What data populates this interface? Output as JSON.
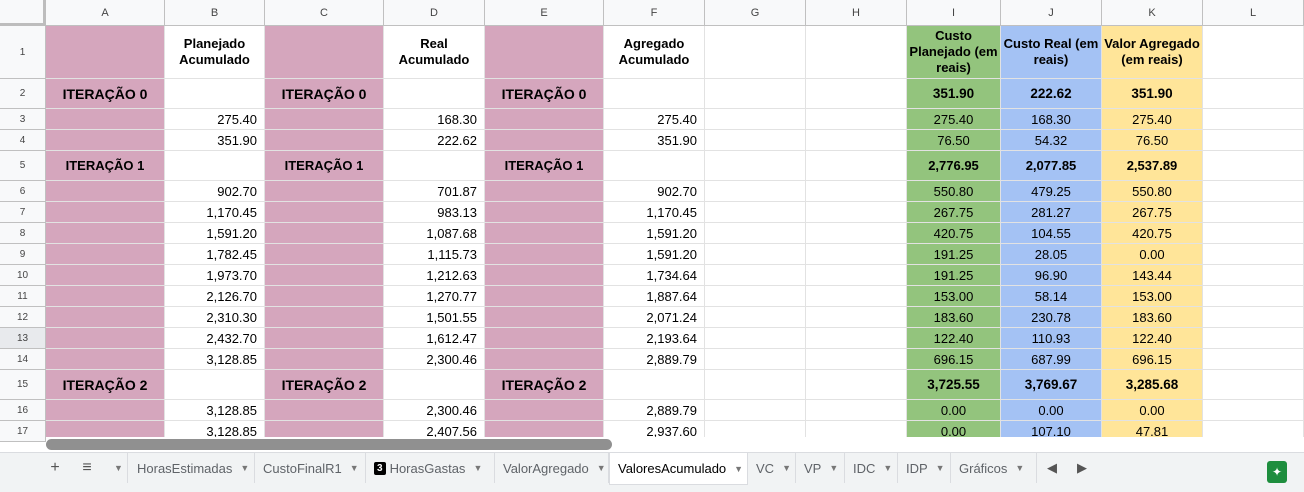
{
  "columns": [
    "A",
    "B",
    "C",
    "D",
    "E",
    "F",
    "G",
    "H",
    "I",
    "J",
    "K",
    "L"
  ],
  "header_row": {
    "B": "Planejado Acumulado",
    "D": "Real Acumulado",
    "F": "Agregado Acumulado",
    "I": "Custo Planejado (em reais)",
    "J": "Custo Real (em reais)",
    "K": "Valor Agregado (em reais)"
  },
  "rows": [
    {
      "n": "2",
      "label": "ITERAÇÃO 0",
      "B": "",
      "D": "",
      "F": "",
      "I": "351.90",
      "J": "222.62",
      "K": "351.90",
      "iteration": true,
      "big": true
    },
    {
      "n": "3",
      "label": "",
      "B": "275.40",
      "D": "168.30",
      "F": "275.40",
      "I": "275.40",
      "J": "168.30",
      "K": "275.40"
    },
    {
      "n": "4",
      "label": "",
      "B": "351.90",
      "D": "222.62",
      "F": "351.90",
      "I": "76.50",
      "J": "54.32",
      "K": "76.50"
    },
    {
      "n": "5",
      "label": "ITERAÇÃO 1",
      "B": "",
      "D": "",
      "F": "",
      "I": "2,776.95",
      "J": "2,077.85",
      "K": "2,537.89",
      "iteration": true,
      "big": false
    },
    {
      "n": "6",
      "label": "",
      "B": "902.70",
      "D": "701.87",
      "F": "902.70",
      "I": "550.80",
      "J": "479.25",
      "K": "550.80"
    },
    {
      "n": "7",
      "label": "",
      "B": "1,170.45",
      "D": "983.13",
      "F": "1,170.45",
      "I": "267.75",
      "J": "281.27",
      "K": "267.75"
    },
    {
      "n": "8",
      "label": "",
      "B": "1,591.20",
      "D": "1,087.68",
      "F": "1,591.20",
      "I": "420.75",
      "J": "104.55",
      "K": "420.75"
    },
    {
      "n": "9",
      "label": "",
      "B": "1,782.45",
      "D": "1,115.73",
      "F": "1,591.20",
      "I": "191.25",
      "J": "28.05",
      "K": "0.00"
    },
    {
      "n": "10",
      "label": "",
      "B": "1,973.70",
      "D": "1,212.63",
      "F": "1,734.64",
      "I": "191.25",
      "J": "96.90",
      "K": "143.44"
    },
    {
      "n": "11",
      "label": "",
      "B": "2,126.70",
      "D": "1,270.77",
      "F": "1,887.64",
      "I": "153.00",
      "J": "58.14",
      "K": "153.00"
    },
    {
      "n": "12",
      "label": "",
      "B": "2,310.30",
      "D": "1,501.55",
      "F": "2,071.24",
      "I": "183.60",
      "J": "230.78",
      "K": "183.60"
    },
    {
      "n": "13",
      "label": "",
      "B": "2,432.70",
      "D": "1,612.47",
      "F": "2,193.64",
      "I": "122.40",
      "J": "110.93",
      "K": "122.40"
    },
    {
      "n": "14",
      "label": "",
      "B": "3,128.85",
      "D": "2,300.46",
      "F": "2,889.79",
      "I": "696.15",
      "J": "687.99",
      "K": "696.15"
    },
    {
      "n": "15",
      "label": "ITERAÇÃO 2",
      "B": "",
      "D": "",
      "F": "",
      "I": "3,725.55",
      "J": "3,769.67",
      "K": "3,285.68",
      "iteration": true,
      "big": true
    },
    {
      "n": "16",
      "label": "",
      "B": "3,128.85",
      "D": "2,300.46",
      "F": "2,889.79",
      "I": "0.00",
      "J": "0.00",
      "K": "0.00"
    },
    {
      "n": "17",
      "label": "",
      "B": "3,128.85",
      "D": "2,407.56",
      "F": "2,937.60",
      "I": "0.00",
      "J": "107.10",
      "K": "47.81"
    }
  ],
  "tabs": [
    {
      "label": "HorasEstimadas",
      "active": false
    },
    {
      "label": "CustoFinalR1",
      "active": false
    },
    {
      "label": "HorasGastas",
      "active": false,
      "badge": "3"
    },
    {
      "label": "ValorAgregado",
      "active": false
    },
    {
      "label": "ValoresAcumulado",
      "active": true
    },
    {
      "label": "VC",
      "active": false
    },
    {
      "label": "VP",
      "active": false
    },
    {
      "label": "IDC",
      "active": false
    },
    {
      "label": "IDP",
      "active": false
    },
    {
      "label": "Gráficos",
      "active": false
    }
  ],
  "icons": {
    "add_sheet": "plus-icon",
    "all_sheets": "menu-icon",
    "scroll_left": "chevron-left-icon",
    "scroll_right": "chevron-right-icon",
    "explore": "explore-icon"
  },
  "colors": {
    "pink": "#d5a6bd",
    "green": "#93c47d",
    "blue": "#a4c2f4",
    "yellow": "#ffe599"
  }
}
